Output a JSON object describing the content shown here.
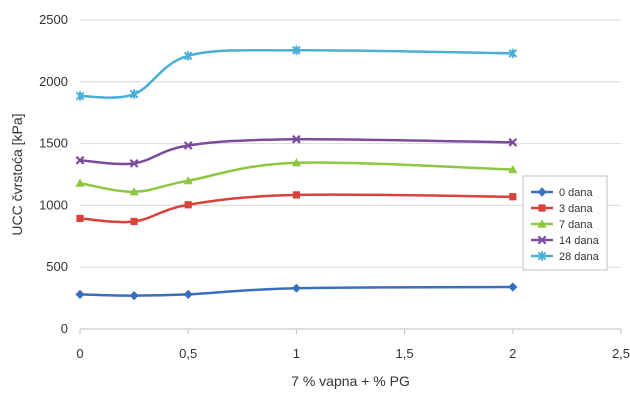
{
  "chart_data": {
    "type": "line",
    "xlabel": "7 % vapna + % PG",
    "ylabel": "UCC čvrstoća [kPa]",
    "xlim": [
      0,
      2.5
    ],
    "ylim": [
      0,
      2500
    ],
    "x_ticks": [
      "0",
      "0,5",
      "1",
      "1,5",
      "2",
      "2,5"
    ],
    "y_ticks": [
      "0",
      "500",
      "1000",
      "1500",
      "2000",
      "2500"
    ],
    "grid": "horizontal",
    "legend_position": "right",
    "x": [
      0,
      0.25,
      0.5,
      1,
      2
    ],
    "series": [
      {
        "name": "0 dana",
        "color": "#3a6fbf",
        "marker": "diamond",
        "values": [
          280,
          270,
          280,
          330,
          340
        ]
      },
      {
        "name": "3 dana",
        "color": "#d9413a",
        "marker": "square",
        "values": [
          895,
          870,
          1005,
          1085,
          1070
        ]
      },
      {
        "name": "7 dana",
        "color": "#8dc63f",
        "marker": "triangle",
        "values": [
          1180,
          1110,
          1200,
          1345,
          1290
        ]
      },
      {
        "name": "14 dana",
        "color": "#7b4b9e",
        "marker": "x",
        "values": [
          1365,
          1340,
          1485,
          1535,
          1510
        ]
      },
      {
        "name": "28 dana",
        "color": "#4aaed6",
        "marker": "star",
        "values": [
          1885,
          1900,
          2210,
          2255,
          2230
        ]
      }
    ]
  }
}
